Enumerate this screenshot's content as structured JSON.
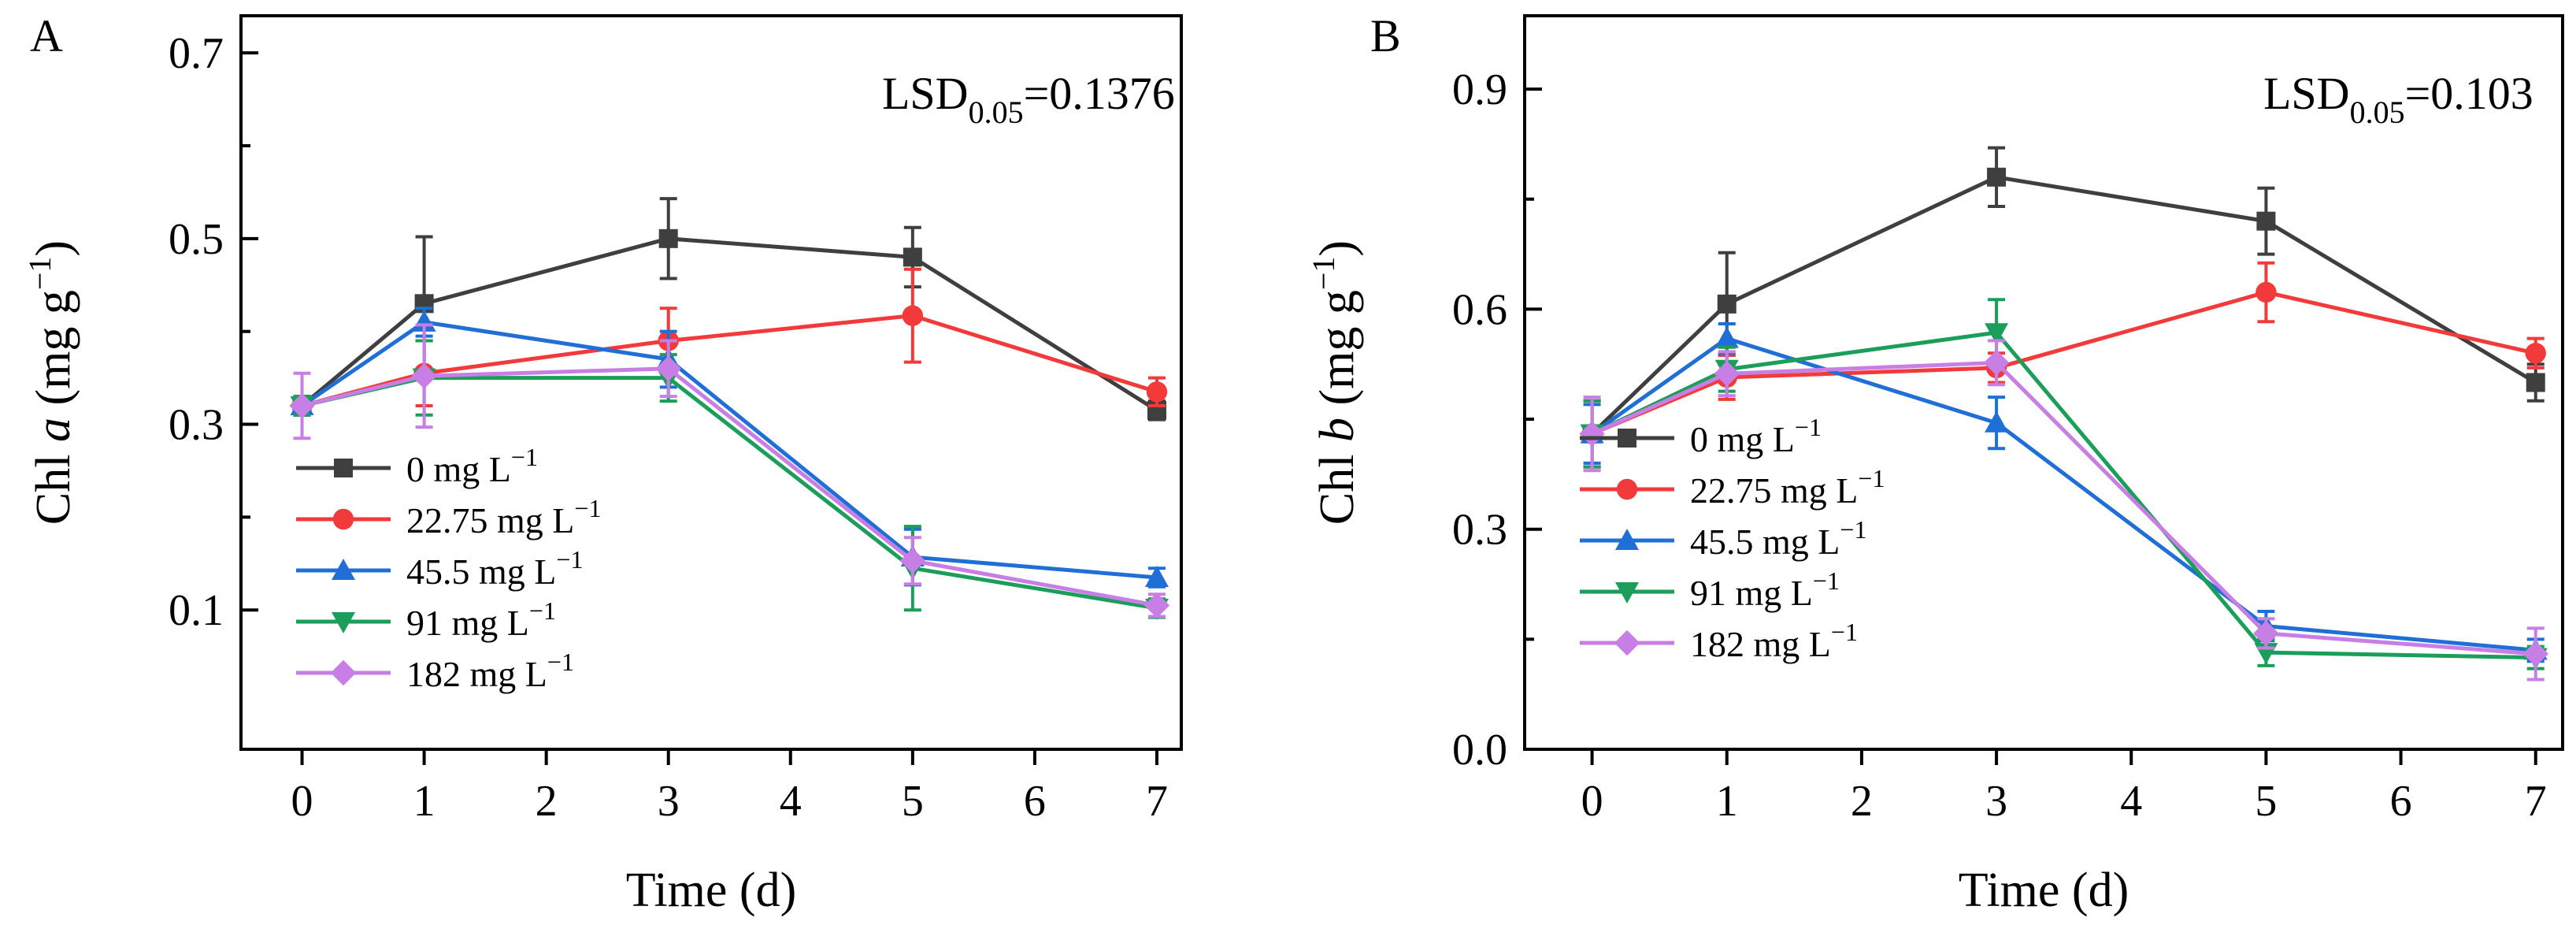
{
  "figure": {
    "panels": [
      "A",
      "B"
    ]
  },
  "chart_data": [
    {
      "type": "line",
      "panel_label": "A",
      "title": "",
      "xlabel": "Time (d)",
      "ylabel_prefix": "Chl ",
      "ylabel_var": "a",
      "ylabel_unit_open": " (mg g",
      "ylabel_unit_exp": "−1",
      "ylabel_unit_close": ")",
      "xlim": [
        -0.5,
        7.2
      ],
      "ylim": [
        -0.05,
        0.74
      ],
      "xticks": [
        0,
        1,
        2,
        3,
        4,
        5,
        6,
        7
      ],
      "xtick_labels": [
        "0",
        "1",
        "2",
        "3",
        "4",
        "5",
        "6",
        "7"
      ],
      "yticks": [
        0.1,
        0.3,
        0.5,
        0.7
      ],
      "ytick_labels": [
        "0.1",
        "0.3",
        "0.5",
        "0.7"
      ],
      "yminor": [
        0.2,
        0.4,
        0.6
      ],
      "annotation": {
        "main": "LSD",
        "sub": "0.05",
        "rest": "=0.1376"
      },
      "legend_position": "lower-left",
      "x": [
        0,
        1,
        3,
        5,
        7
      ],
      "series": [
        {
          "name": "0 mg L",
          "exp": "−1",
          "color": "#3f3f3f",
          "marker": "square",
          "values": [
            0.32,
            0.43,
            0.5,
            0.48,
            0.315
          ],
          "errors": [
            0.01,
            0.072,
            0.043,
            0.032,
            0.01
          ]
        },
        {
          "name": "22.75 mg L",
          "exp": "−1",
          "color": "#f23a3a",
          "marker": "circle",
          "values": [
            0.32,
            0.355,
            0.39,
            0.417,
            0.335
          ],
          "errors": [
            0.01,
            0.035,
            0.035,
            0.05,
            0.015
          ]
        },
        {
          "name": "45.5 mg L",
          "exp": "−1",
          "color": "#1f6fd6",
          "marker": "triangle-up",
          "values": [
            0.32,
            0.41,
            0.37,
            0.157,
            0.135
          ],
          "errors": [
            0.01,
            0.015,
            0.03,
            0.03,
            0.01
          ]
        },
        {
          "name": "91 mg L",
          "exp": "−1",
          "color": "#1a9e5a",
          "marker": "triangle-down",
          "values": [
            0.32,
            0.35,
            0.35,
            0.145,
            0.102
          ],
          "errors": [
            0.01,
            0.04,
            0.025,
            0.045,
            0.01
          ]
        },
        {
          "name": "182 mg L",
          "exp": "−1",
          "color": "#c77fe6",
          "marker": "diamond",
          "values": [
            0.32,
            0.352,
            0.36,
            0.153,
            0.105
          ],
          "errors": [
            0.035,
            0.055,
            0.03,
            0.025,
            0.012
          ]
        }
      ]
    },
    {
      "type": "line",
      "panel_label": "B",
      "title": "",
      "xlabel": "Time (d)",
      "ylabel_prefix": "Chl ",
      "ylabel_var": "b",
      "ylabel_unit_open": " (mg g",
      "ylabel_unit_exp": "−1",
      "ylabel_unit_close": ")",
      "xlim": [
        -0.5,
        7.2
      ],
      "ylim": [
        0.0,
        1.0
      ],
      "xticks": [
        0,
        1,
        2,
        3,
        4,
        5,
        6,
        7
      ],
      "xtick_labels": [
        "0",
        "1",
        "2",
        "3",
        "4",
        "5",
        "6",
        "7"
      ],
      "yticks": [
        0.0,
        0.3,
        0.6,
        0.9
      ],
      "ytick_labels": [
        "0.0",
        "0.3",
        "0.6",
        "0.9"
      ],
      "yminor": [
        0.15,
        0.45,
        0.75
      ],
      "annotation": {
        "main": "LSD",
        "sub": "0.05",
        "rest": "=0.103"
      },
      "legend_position": "lower-left",
      "x": [
        0,
        1,
        3,
        5,
        7
      ],
      "series": [
        {
          "name": "0 mg L",
          "exp": "−1",
          "color": "#3f3f3f",
          "marker": "square",
          "values": [
            0.43,
            0.607,
            0.78,
            0.72,
            0.5
          ],
          "errors": [
            0.045,
            0.07,
            0.04,
            0.045,
            0.025
          ]
        },
        {
          "name": "22.75 mg L",
          "exp": "−1",
          "color": "#f23a3a",
          "marker": "circle",
          "values": [
            0.43,
            0.507,
            0.52,
            0.623,
            0.54
          ],
          "errors": [
            0.045,
            0.03,
            0.02,
            0.04,
            0.02
          ]
        },
        {
          "name": "45.5 mg L",
          "exp": "−1",
          "color": "#1f6fd6",
          "marker": "triangle-up",
          "values": [
            0.43,
            0.56,
            0.445,
            0.168,
            0.135
          ],
          "errors": [
            0.04,
            0.02,
            0.035,
            0.02,
            0.015
          ]
        },
        {
          "name": "91 mg L",
          "exp": "−1",
          "color": "#1a9e5a",
          "marker": "triangle-down",
          "values": [
            0.43,
            0.518,
            0.568,
            0.132,
            0.125
          ],
          "errors": [
            0.045,
            0.03,
            0.045,
            0.018,
            0.015
          ]
        },
        {
          "name": "182 mg L",
          "exp": "−1",
          "color": "#c77fe6",
          "marker": "diamond",
          "values": [
            0.43,
            0.512,
            0.527,
            0.158,
            0.13
          ],
          "errors": [
            0.05,
            0.03,
            0.03,
            0.02,
            0.035
          ]
        }
      ]
    }
  ]
}
